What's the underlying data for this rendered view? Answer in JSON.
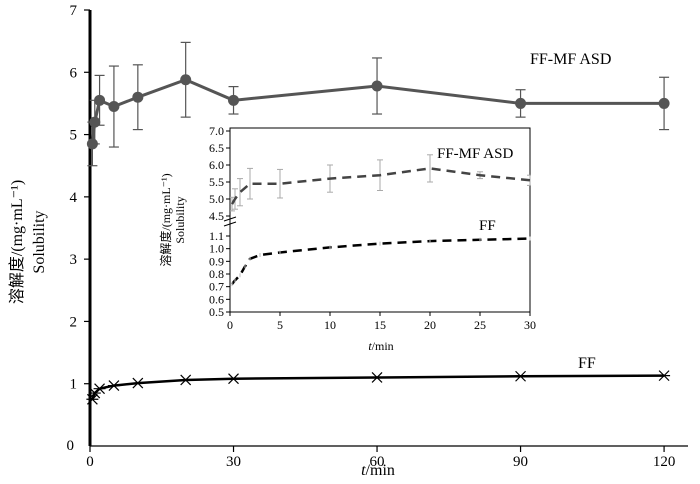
{
  "chart_data": [
    {
      "type": "line",
      "role": "main",
      "xlabel_var": "t",
      "xlabel_unit": "/min",
      "ylabel_cn": "溶解度/(mg·mL⁻¹)",
      "ylabel_en": "Solubility",
      "xlim": [
        0,
        125
      ],
      "ylim": [
        0,
        7
      ],
      "x_ticks": [
        0,
        30,
        60,
        90,
        120
      ],
      "y_ticks": [
        1,
        2,
        3,
        4,
        5,
        6,
        7
      ],
      "series": [
        {
          "name": "FF-MF ASD",
          "color": "#555555",
          "marker": "circle",
          "x": [
            0.5,
            1,
            2,
            5,
            10,
            20,
            30,
            60,
            90,
            120
          ],
          "y": [
            4.85,
            5.2,
            5.55,
            5.45,
            5.6,
            5.88,
            5.55,
            5.78,
            5.5,
            5.5
          ],
          "err": [
            0.35,
            0.35,
            0.4,
            0.65,
            0.52,
            0.6,
            0.22,
            0.45,
            0.22,
            0.42
          ]
        },
        {
          "name": "FF",
          "color": "#000000",
          "marker": "star",
          "x": [
            0.5,
            1,
            2,
            5,
            10,
            20,
            30,
            60,
            90,
            120
          ],
          "y": [
            0.75,
            0.85,
            0.92,
            0.97,
            1.01,
            1.06,
            1.08,
            1.1,
            1.12,
            1.13
          ]
        }
      ]
    },
    {
      "type": "line",
      "role": "inset",
      "xlabel_var": "t",
      "xlabel_unit": "/min",
      "ylabel_cn": "溶解度/(mg·mL⁻¹)",
      "ylabel_en": "Solubility",
      "xlim": [
        0,
        30
      ],
      "x_ticks": [
        0,
        5,
        10,
        15,
        20,
        25,
        30
      ],
      "upper_panel": {
        "ylim": [
          4.5,
          7.0
        ],
        "y_ticks": [
          "4.5",
          "5.0",
          "5.5",
          "6.0",
          "6.5",
          "7.0"
        ],
        "series": {
          "name": "FF-MF ASD",
          "color": "#444444",
          "x": [
            0.2,
            0.5,
            1,
            2,
            5,
            10,
            15,
            20,
            25,
            30
          ],
          "y": [
            4.85,
            5.0,
            5.2,
            5.45,
            5.45,
            5.6,
            5.7,
            5.9,
            5.7,
            5.55
          ],
          "err": [
            0.2,
            0.3,
            0.4,
            0.45,
            0.42,
            0.4,
            0.45,
            0.4,
            0.1,
            0.15
          ]
        }
      },
      "lower_panel": {
        "ylim": [
          0.5,
          1.1
        ],
        "y_ticks": [
          "0.5",
          "0.6",
          "0.7",
          "0.8",
          "0.9",
          "1.0",
          "1.1"
        ],
        "series": {
          "name": "FF",
          "color": "#000000",
          "x": [
            0.2,
            0.5,
            1,
            1.5,
            2,
            3,
            5,
            10,
            15,
            20,
            25,
            30
          ],
          "y": [
            0.72,
            0.75,
            0.79,
            0.86,
            0.92,
            0.95,
            0.97,
            1.01,
            1.04,
            1.06,
            1.07,
            1.08
          ]
        }
      }
    }
  ]
}
